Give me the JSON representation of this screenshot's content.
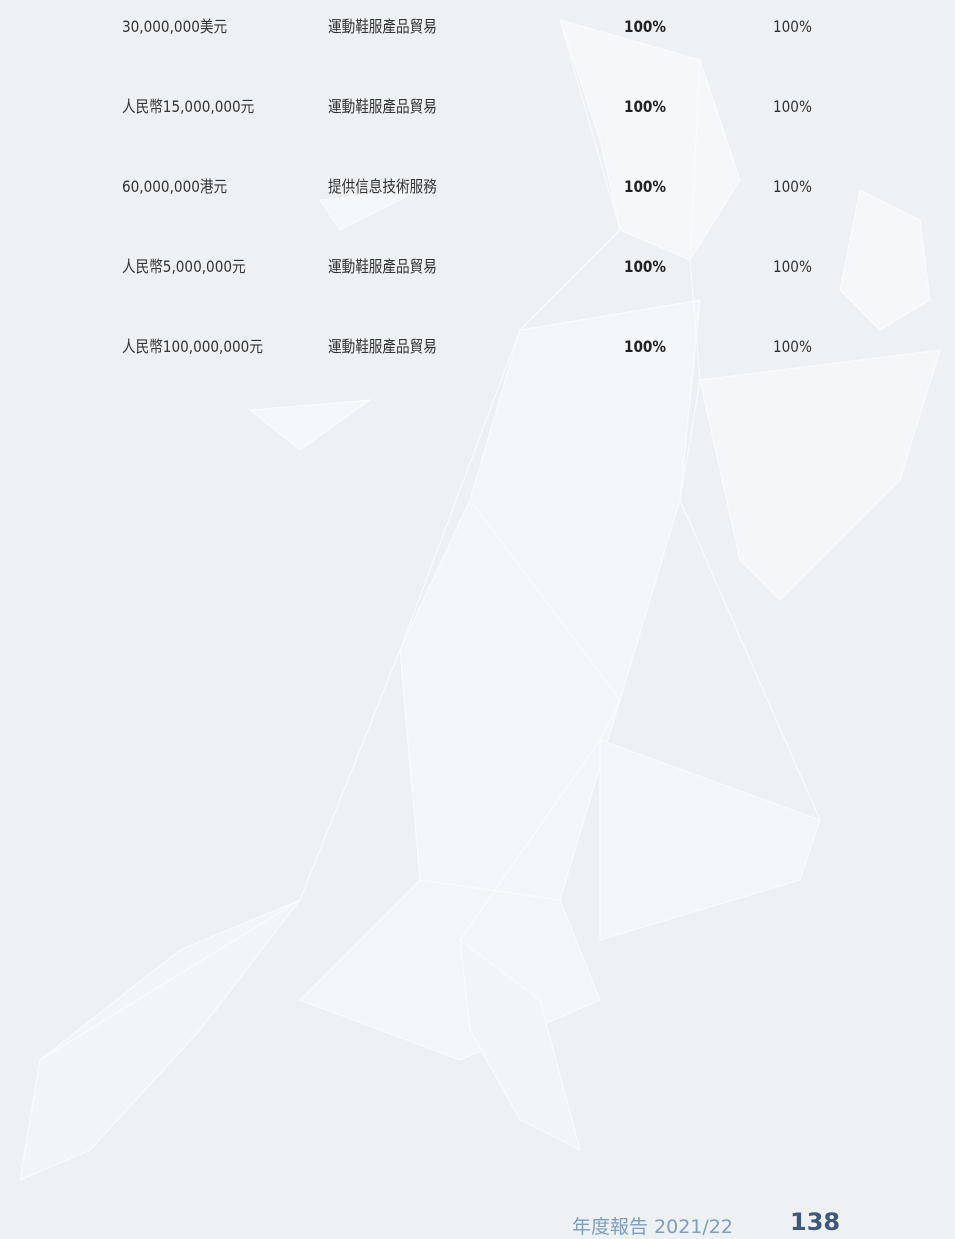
{
  "table": {
    "rows": [
      [
        "30,000,000美元",
        "運動鞋服產品貿易",
        "100%",
        "100%"
      ],
      [
        "人民幣15,000,000元",
        "運動鞋服產品貿易",
        "100%",
        "100%"
      ],
      [
        "60,000,000港元",
        "提供信息技術服務",
        "100%",
        "100%"
      ],
      [
        "人民幣5,000,000元",
        "運動鞋服產品貿易",
        "100%",
        "100%"
      ],
      [
        "人民幣100,000,000元",
        "運動鞋服產品貿易",
        "100%",
        "100%"
      ]
    ]
  },
  "footer": {
    "label": "年度報告 2021/22",
    "page": "138"
  }
}
